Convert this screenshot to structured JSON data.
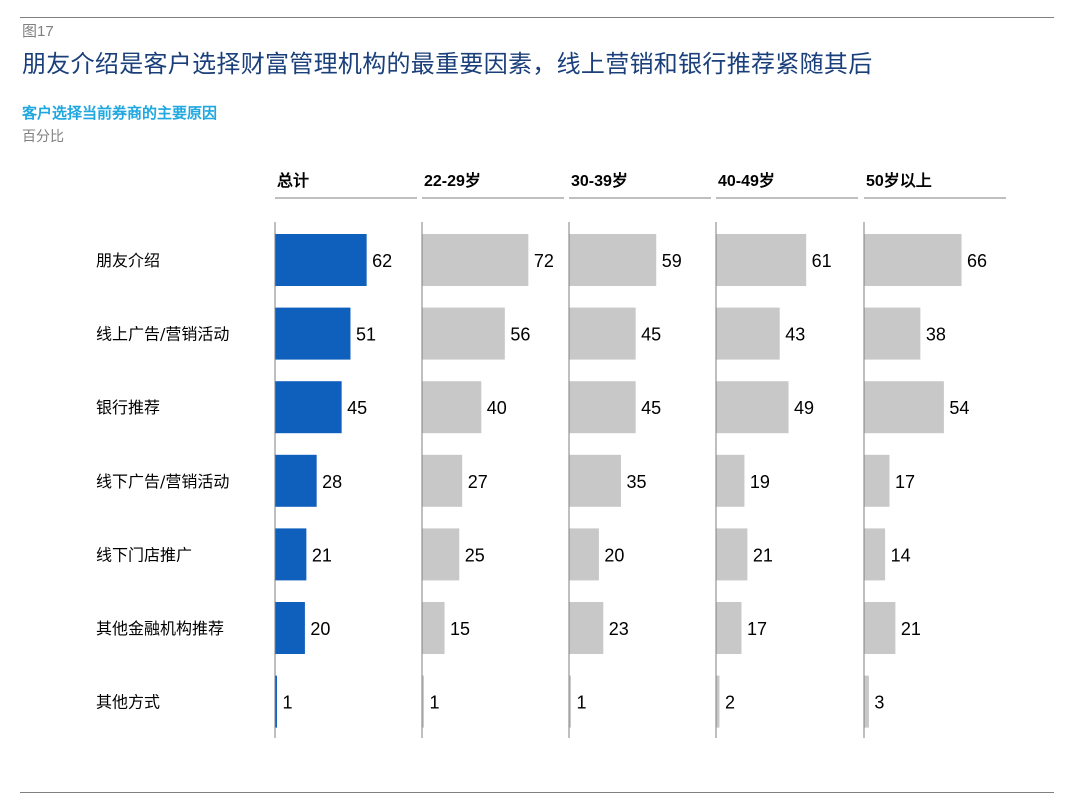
{
  "figure": {
    "label": "图17",
    "title": "朋友介绍是客户选择财富管理机构的最重要因素，线上营销和银行推荐紧随其后"
  },
  "chart_data": {
    "type": "bar",
    "orientation": "horizontal",
    "layout": "small-multiples",
    "title": "客户选择当前券商的主要原因",
    "unit": "百分比",
    "categories": [
      "朋友介绍",
      "线上广告/营销活动",
      "银行推荐",
      "线下广告/营销活动",
      "线下门店推广",
      "其他金融机构推荐",
      "其他方式"
    ],
    "series": [
      {
        "name": "总计",
        "values": [
          62,
          51,
          45,
          28,
          21,
          20,
          1
        ],
        "color": "#0f5fbd"
      },
      {
        "name": "22-29岁",
        "values": [
          72,
          56,
          40,
          27,
          25,
          15,
          1
        ],
        "color": "#c8c8c8"
      },
      {
        "name": "30-39岁",
        "values": [
          59,
          45,
          45,
          35,
          20,
          23,
          1
        ],
        "color": "#c8c8c8"
      },
      {
        "name": "40-49岁",
        "values": [
          61,
          43,
          49,
          19,
          21,
          17,
          2
        ],
        "color": "#c8c8c8"
      },
      {
        "name": "50岁以上",
        "values": [
          66,
          38,
          54,
          17,
          14,
          21,
          3
        ],
        "color": "#c8c8c8"
      }
    ],
    "xlim": [
      0,
      100
    ]
  },
  "colors": {
    "title": "#1a3f7a",
    "subtitle": "#1fa7e0",
    "muted": "#808080",
    "highlight": "#0f5fbd",
    "bar": "#c8c8c8",
    "axis": "#7f7f7f"
  }
}
